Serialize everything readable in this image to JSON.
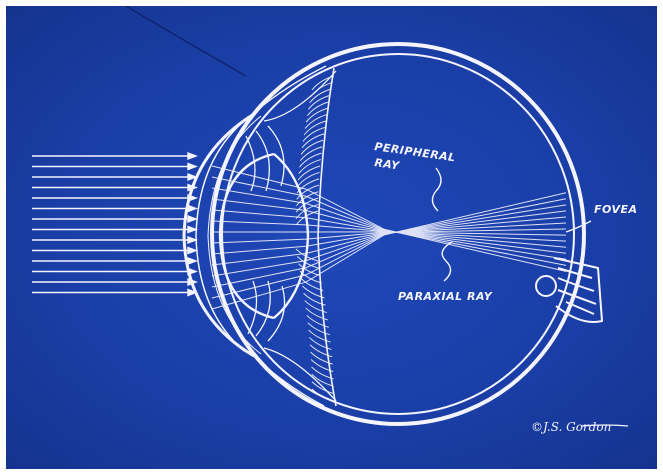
{
  "labels": {
    "peripheral_line1": "PERIPHERAL",
    "peripheral_line2": "RAY",
    "fovea": "FOVEA",
    "paraxial": "PARAXIAL RAY"
  },
  "signature": "©J.S. Gordon",
  "colors": {
    "background": "#1a3fa8",
    "ink": "#f4f4ff"
  },
  "icons": {
    "eye": "eye-cross-section-drawing"
  }
}
